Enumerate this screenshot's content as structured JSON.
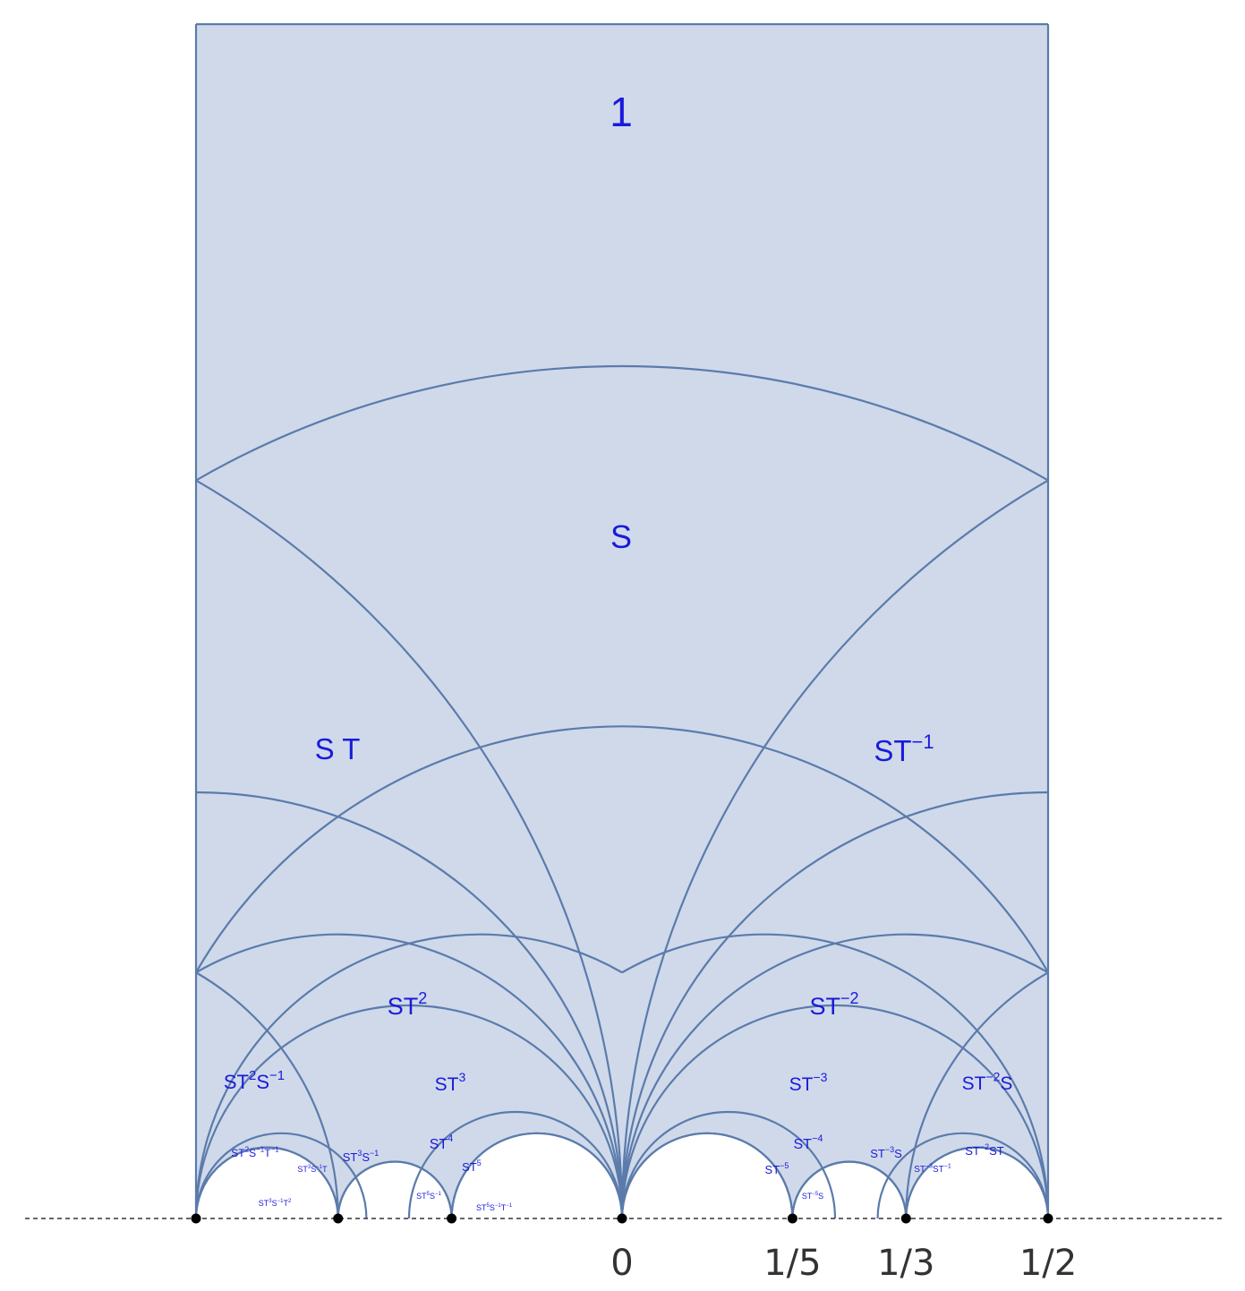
{
  "colors": {
    "fill": "#cfd9ea",
    "stroke": "#5b7bab",
    "label": "#1a1adb",
    "axis": "#333333",
    "point": "#000000"
  },
  "regions": [
    {
      "id": "r-1",
      "base": "1",
      "sup": ""
    },
    {
      "id": "r-s",
      "base": "S",
      "sup": ""
    },
    {
      "id": "r-st",
      "base": "S T",
      "sup": ""
    },
    {
      "id": "r-stm1",
      "base": "ST",
      "sup": "−1"
    },
    {
      "id": "r-st2",
      "base": "ST",
      "sup": "2"
    },
    {
      "id": "r-stm2",
      "base": "ST",
      "sup": "−2"
    },
    {
      "id": "r-st2sm1",
      "parts": [
        [
          "ST",
          ""
        ],
        [
          "2",
          "sup"
        ],
        [
          "S",
          ""
        ],
        [
          "−1",
          "sup"
        ]
      ]
    },
    {
      "id": "r-st3",
      "base": "ST",
      "sup": "3"
    },
    {
      "id": "r-stm3",
      "base": "ST",
      "sup": "−3"
    },
    {
      "id": "r-stm2s",
      "parts": [
        [
          "ST",
          ""
        ],
        [
          "−2",
          "sup"
        ],
        [
          "S",
          ""
        ]
      ]
    },
    {
      "id": "r-st4",
      "base": "ST",
      "sup": "4"
    },
    {
      "id": "r-stm4",
      "base": "ST",
      "sup": "−4"
    },
    {
      "id": "r-st5",
      "base": "ST",
      "sup": "5"
    },
    {
      "id": "r-stm5",
      "base": "ST",
      "sup": "−5"
    },
    {
      "id": "r-st2sm1tm1",
      "parts": [
        [
          "ST",
          ""
        ],
        [
          "2",
          "sup"
        ],
        [
          "S",
          ""
        ],
        [
          "−1",
          "sup"
        ],
        [
          "T",
          ""
        ],
        [
          "−1",
          "sup"
        ]
      ]
    },
    {
      "id": "r-st3sm1t",
      "parts": [
        [
          "ST",
          ""
        ],
        [
          "3",
          "sup"
        ],
        [
          "S",
          ""
        ],
        [
          "−1",
          "sup"
        ],
        [
          "T",
          ""
        ]
      ]
    },
    {
      "id": "r-st3sm1",
      "parts": [
        [
          "ST",
          ""
        ],
        [
          "3",
          "sup"
        ],
        [
          "S",
          ""
        ],
        [
          "−1",
          "sup"
        ]
      ]
    },
    {
      "id": "r-st3sm1t2",
      "parts": [
        [
          "ST",
          ""
        ],
        [
          "3",
          "sup"
        ],
        [
          "S",
          ""
        ],
        [
          "−1",
          "sup"
        ],
        [
          "T",
          ""
        ],
        [
          "2",
          "sup"
        ]
      ]
    },
    {
      "id": "r-st5sm1",
      "parts": [
        [
          "ST",
          ""
        ],
        [
          "5",
          "sup"
        ],
        [
          "S",
          ""
        ],
        [
          "−1",
          "sup"
        ]
      ]
    },
    {
      "id": "r-st5sm1tm1",
      "parts": [
        [
          "ST",
          ""
        ],
        [
          "5",
          "sup"
        ],
        [
          "S",
          ""
        ],
        [
          "−1",
          "sup"
        ],
        [
          "T",
          ""
        ],
        [
          "−1",
          "sup"
        ]
      ]
    },
    {
      "id": "r-stm5s",
      "parts": [
        [
          "ST",
          ""
        ],
        [
          "−5",
          "sup"
        ],
        [
          "S",
          ""
        ]
      ]
    },
    {
      "id": "r-stm3s",
      "parts": [
        [
          "ST",
          ""
        ],
        [
          "−3",
          "sup"
        ],
        [
          "S",
          ""
        ]
      ]
    },
    {
      "id": "r-stm3stm1",
      "parts": [
        [
          "ST",
          ""
        ],
        [
          "−3",
          "sup"
        ],
        [
          "ST",
          ""
        ],
        [
          "−1",
          "sup"
        ]
      ]
    },
    {
      "id": "r-stm2st",
      "parts": [
        [
          "ST",
          ""
        ],
        [
          "−2",
          "sup"
        ],
        [
          "ST",
          ""
        ]
      ]
    }
  ],
  "axis": {
    "points": [
      -0.5,
      -0.3333,
      -0.2,
      0,
      0.2,
      0.3333,
      0.5
    ],
    "tick_labels": [
      {
        "value": 0,
        "label": "0"
      },
      {
        "value": 0.2,
        "label": "1/5"
      },
      {
        "value": 0.3333,
        "label": "1/3"
      },
      {
        "value": 0.5,
        "label": "1/2"
      }
    ]
  }
}
